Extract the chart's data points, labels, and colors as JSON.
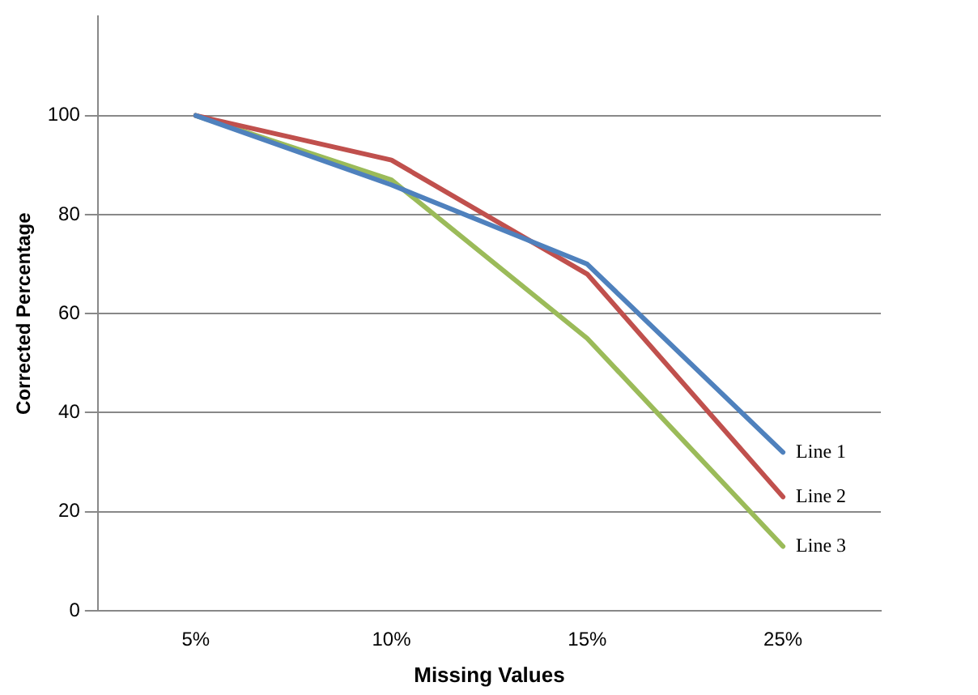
{
  "chart_data": {
    "type": "line",
    "xlabel": "Missing Values",
    "ylabel": "Corrected Percentage",
    "categories": [
      "5%",
      "10%",
      "15%",
      "25%"
    ],
    "series": [
      {
        "name": "Line 1",
        "color": "#4f81bd",
        "values": [
          100,
          86,
          70,
          32
        ]
      },
      {
        "name": "Line 2",
        "color": "#c0504d",
        "values": [
          100,
          91,
          68,
          23
        ]
      },
      {
        "name": "Line 3",
        "color": "#9bbb59",
        "values": [
          100,
          87,
          55,
          13
        ]
      }
    ],
    "ylim": [
      0,
      120
    ],
    "yticks": [
      0,
      20,
      40,
      60,
      80,
      100
    ],
    "grid": "y",
    "legend": false,
    "marker": "none",
    "line_style": "solid"
  }
}
